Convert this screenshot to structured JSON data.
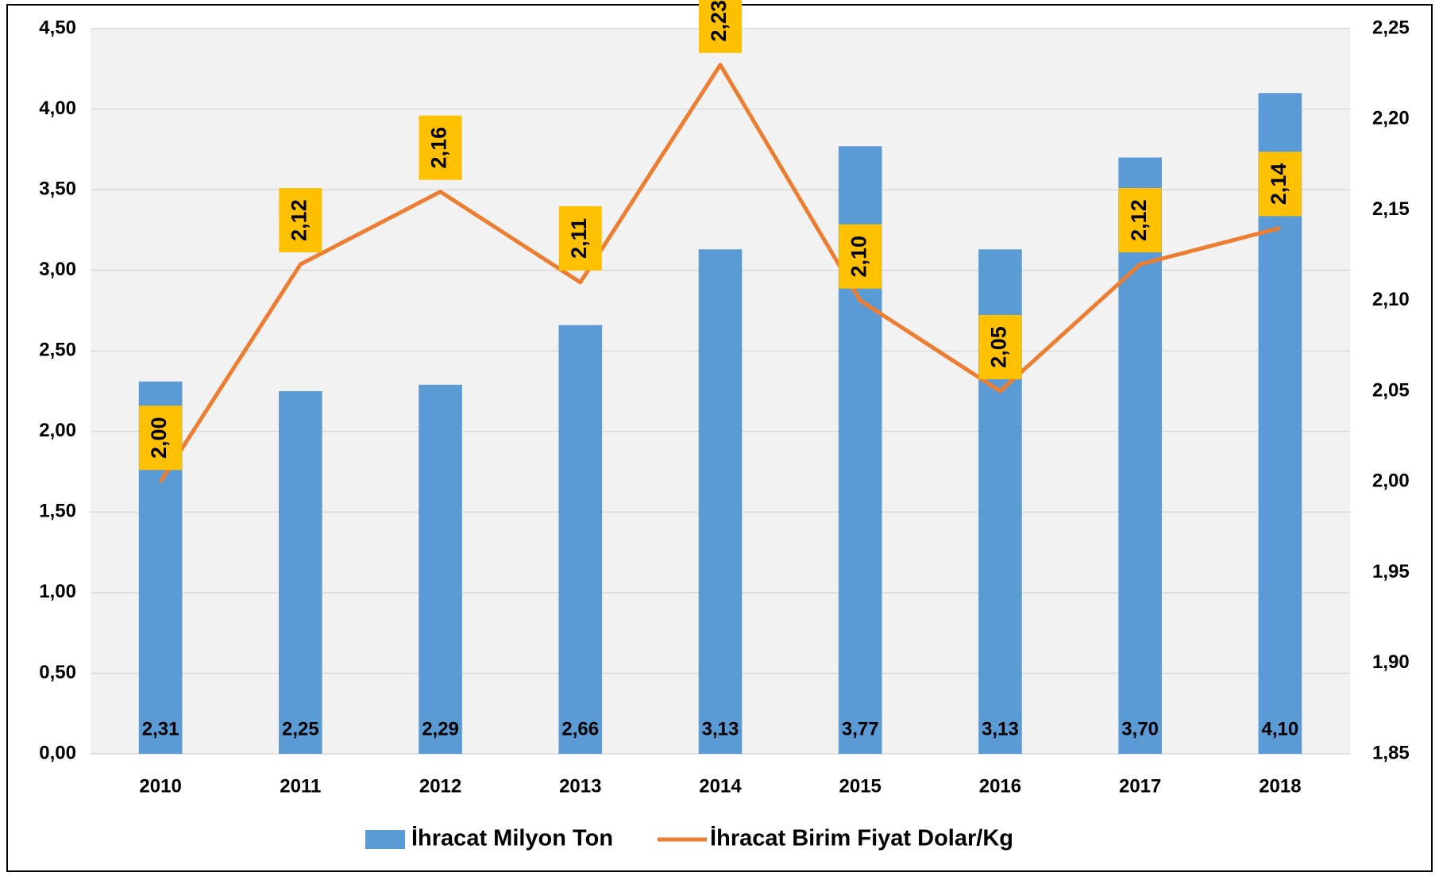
{
  "chart_data": {
    "type": "bar",
    "categories": [
      "2010",
      "2011",
      "2012",
      "2013",
      "2014",
      "2015",
      "2016",
      "2017",
      "2018"
    ],
    "series": [
      {
        "name": "İhracat Milyon Ton",
        "type": "bar",
        "color": "#5b9bd5",
        "values": [
          2.31,
          2.25,
          2.29,
          2.66,
          3.13,
          3.77,
          3.13,
          3.7,
          4.1
        ],
        "value_labels": [
          "2,31",
          "2,25",
          "2,29",
          "2,66",
          "3,13",
          "3,77",
          "3,13",
          "3,70",
          "4,10"
        ]
      },
      {
        "name": "İhracat Birim Fiyat Dolar/Kg",
        "type": "line",
        "axis": "y2",
        "color": "#ed7d31",
        "label_box_color": "#ffc000",
        "values": [
          2.0,
          2.12,
          2.16,
          2.11,
          2.23,
          2.1,
          2.05,
          2.12,
          2.14
        ],
        "value_labels": [
          "2,00",
          "2,12",
          "2,16",
          "2,11",
          "2,23",
          "2,10",
          "2,05",
          "2,12",
          "2,14"
        ]
      }
    ],
    "ylim": [
      0,
      4.5
    ],
    "yticks": [
      {
        "value": 0,
        "label": "0,00"
      },
      {
        "value": 0.5,
        "label": "0,50"
      },
      {
        "value": 1,
        "label": "1,00"
      },
      {
        "value": 1.5,
        "label": "1,50"
      },
      {
        "value": 2,
        "label": "2,00"
      },
      {
        "value": 2.5,
        "label": "2,50"
      },
      {
        "value": 3,
        "label": "3,00"
      },
      {
        "value": 3.5,
        "label": "3,50"
      },
      {
        "value": 4,
        "label": "4,00"
      },
      {
        "value": 4.5,
        "label": "4,50"
      }
    ],
    "y2lim": [
      1.85,
      2.25
    ],
    "y2ticks": [
      {
        "value": 1.85,
        "label": "1,85"
      },
      {
        "value": 1.9,
        "label": "1,90"
      },
      {
        "value": 1.95,
        "label": "1,95"
      },
      {
        "value": 2,
        "label": "2,00"
      },
      {
        "value": 2.05,
        "label": "2,05"
      },
      {
        "value": 2.1,
        "label": "2,10"
      },
      {
        "value": 2.15,
        "label": "2,15"
      },
      {
        "value": 2.2,
        "label": "2,20"
      },
      {
        "value": 2.25,
        "label": "2,25"
      }
    ],
    "grid": true,
    "legend": "bottom"
  }
}
